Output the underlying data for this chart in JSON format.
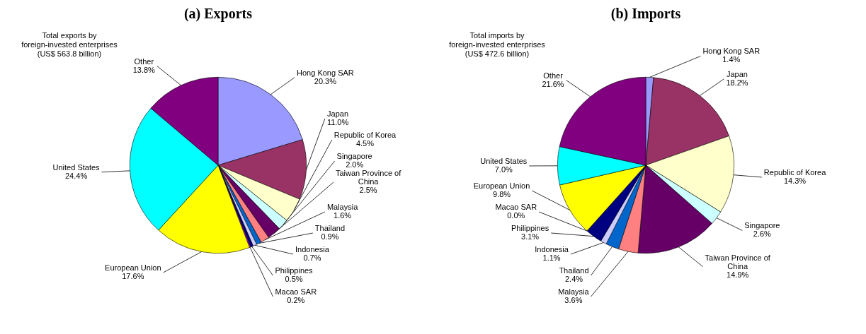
{
  "chart_data": [
    {
      "type": "pie",
      "title": "(a) Exports",
      "annotations": [
        "Total exports by foreign-invested enterprises (US$ 563.8 billion)"
      ],
      "legend": false,
      "categories": [
        "Hong Kong SAR",
        "Japan",
        "Republic of Korea",
        "Singapore",
        "Taiwan Province of China",
        "Malaysia",
        "Thailand",
        "Indonesia",
        "Philippines",
        "Macao SAR",
        "European Union",
        "United States",
        "Other"
      ],
      "values": [
        20.3,
        11.0,
        4.5,
        2.0,
        2.5,
        1.6,
        0.9,
        0.7,
        0.5,
        0.2,
        17.6,
        24.4,
        13.8
      ],
      "value_labels": [
        "20.3%",
        "11.0%",
        "4.5%",
        "2.0%",
        "2.5%",
        "1.6%",
        "0.9%",
        "0.7%",
        "0.5%",
        "0.2%",
        "17.6%",
        "24.4%",
        "13.8%"
      ],
      "colors": [
        "#9999ff",
        "#993366",
        "#ffffcc",
        "#ccffff",
        "#660066",
        "#ff8080",
        "#0066cc",
        "#ccccff",
        "#000080",
        "#ff00ff",
        "#ffff00",
        "#00ffff",
        "#800080"
      ]
    },
    {
      "type": "pie",
      "title": "(b) Imports",
      "annotations": [
        "Total imports by foreign-invested enterprises (US$ 472.6 billion)"
      ],
      "legend": false,
      "categories": [
        "Hong Kong SAR",
        "Japan",
        "Republic of Korea",
        "Singapore",
        "Taiwan Province of China",
        "Malaysia",
        "Thailand",
        "Indonesia",
        "Philippines",
        "Macao SAR",
        "European Union",
        "United States",
        "Other"
      ],
      "values": [
        1.4,
        18.2,
        14.3,
        2.6,
        14.9,
        3.6,
        2.4,
        1.1,
        3.1,
        0.0,
        9.8,
        7.0,
        21.6
      ],
      "value_labels": [
        "1.4%",
        "18.2%",
        "14.3%",
        "2.6%",
        "14.9%",
        "3.6%",
        "2.4%",
        "1.1%",
        "3.1%",
        "0.0%",
        "9.8%",
        "7.0%",
        "21.6%"
      ],
      "colors": [
        "#9999ff",
        "#993366",
        "#ffffcc",
        "#ccffff",
        "#660066",
        "#ff8080",
        "#0066cc",
        "#ccccff",
        "#000080",
        "#ff00ff",
        "#ffff00",
        "#00ffff",
        "#800080"
      ]
    }
  ]
}
